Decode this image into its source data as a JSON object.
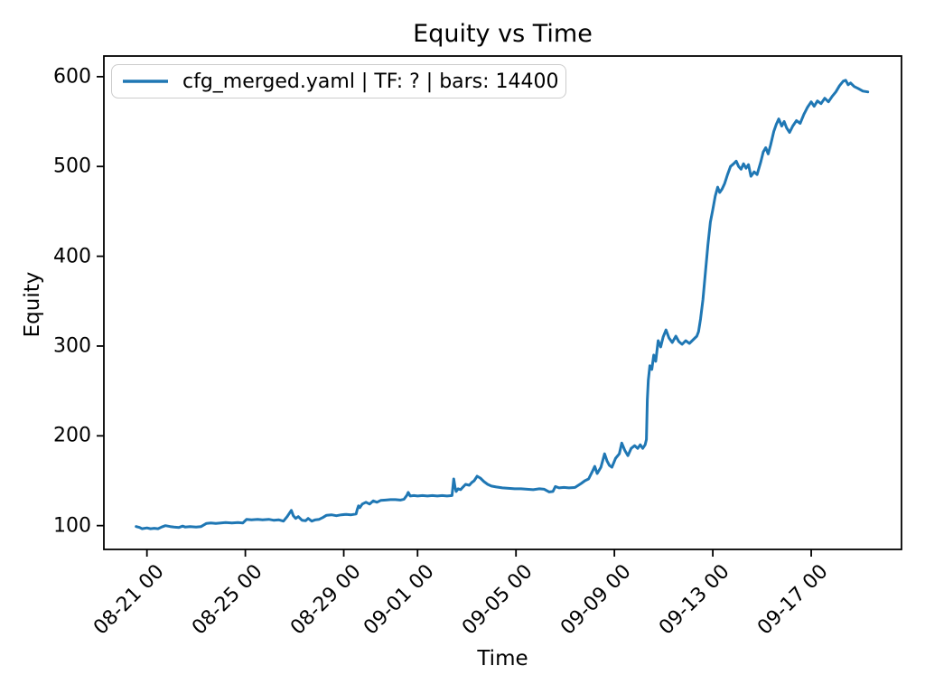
{
  "chart_data": {
    "type": "line",
    "title": "Equity vs Time",
    "xlabel": "Time",
    "ylabel": "Equity",
    "grid": false,
    "background": "#ffffff",
    "spine_color": "#000000",
    "legend": {
      "position": "upper left",
      "entries": [
        {
          "label": "cfg_merged.yaml | TF: ? | bars: 14400",
          "color": "#1f77b4"
        }
      ]
    },
    "x_unit": "days since 08-20 00:00",
    "xlim": [
      -0.75,
      31.67
    ],
    "ylim": [
      73.5,
      623
    ],
    "y_ticks": [
      100,
      200,
      300,
      400,
      500,
      600
    ],
    "x_ticks": [
      {
        "day": 1,
        "label": "08-21 00"
      },
      {
        "day": 5,
        "label": "08-25 00"
      },
      {
        "day": 9,
        "label": "08-29 00"
      },
      {
        "day": 12,
        "label": "09-01 00"
      },
      {
        "day": 16,
        "label": "09-05 00"
      },
      {
        "day": 20,
        "label": "09-09 00"
      },
      {
        "day": 24,
        "label": "09-13 00"
      },
      {
        "day": 28,
        "label": "09-17 00"
      }
    ],
    "series": [
      {
        "name": "cfg_merged.yaml | TF: ? | bars: 14400",
        "color": "#1f77b4",
        "linewidth": 3,
        "points": [
          [
            0.56,
            99
          ],
          [
            0.7,
            98
          ],
          [
            0.8,
            96.5
          ],
          [
            1.0,
            97.5
          ],
          [
            1.15,
            96.5
          ],
          [
            1.3,
            97
          ],
          [
            1.45,
            96.5
          ],
          [
            1.6,
            98.5
          ],
          [
            1.75,
            100
          ],
          [
            1.95,
            99
          ],
          [
            2.1,
            98.5
          ],
          [
            2.3,
            98
          ],
          [
            2.45,
            99.5
          ],
          [
            2.55,
            98.5
          ],
          [
            2.75,
            99
          ],
          [
            3.0,
            98.5
          ],
          [
            3.2,
            99
          ],
          [
            3.42,
            102.5
          ],
          [
            3.6,
            103
          ],
          [
            3.8,
            102.5
          ],
          [
            4.0,
            103
          ],
          [
            4.2,
            103.5
          ],
          [
            4.45,
            103
          ],
          [
            4.7,
            103.5
          ],
          [
            4.9,
            103
          ],
          [
            5.05,
            107
          ],
          [
            5.25,
            106.5
          ],
          [
            5.5,
            107
          ],
          [
            5.7,
            106.5
          ],
          [
            5.95,
            107
          ],
          [
            6.15,
            106
          ],
          [
            6.35,
            106.5
          ],
          [
            6.55,
            105
          ],
          [
            6.7,
            110
          ],
          [
            6.87,
            117
          ],
          [
            6.95,
            111
          ],
          [
            7.05,
            108
          ],
          [
            7.15,
            110
          ],
          [
            7.3,
            106
          ],
          [
            7.45,
            105.5
          ],
          [
            7.55,
            108
          ],
          [
            7.7,
            105
          ],
          [
            7.85,
            106.5
          ],
          [
            8.0,
            107
          ],
          [
            8.15,
            109
          ],
          [
            8.3,
            111.5
          ],
          [
            8.5,
            112
          ],
          [
            8.7,
            111
          ],
          [
            8.9,
            112
          ],
          [
            9.1,
            112.5
          ],
          [
            9.3,
            112
          ],
          [
            9.5,
            113
          ],
          [
            9.55,
            118
          ],
          [
            9.6,
            122
          ],
          [
            9.65,
            120
          ],
          [
            9.75,
            124
          ],
          [
            9.9,
            126
          ],
          [
            10.05,
            124
          ],
          [
            10.2,
            127.5
          ],
          [
            10.35,
            126
          ],
          [
            10.5,
            128
          ],
          [
            10.7,
            128.5
          ],
          [
            10.9,
            129
          ],
          [
            11.1,
            129
          ],
          [
            11.3,
            128.5
          ],
          [
            11.45,
            129.5
          ],
          [
            11.57,
            134
          ],
          [
            11.62,
            137
          ],
          [
            11.7,
            133
          ],
          [
            11.85,
            133.5
          ],
          [
            12.0,
            133
          ],
          [
            12.2,
            133.5
          ],
          [
            12.4,
            133
          ],
          [
            12.6,
            133.5
          ],
          [
            12.8,
            133
          ],
          [
            13.0,
            133.5
          ],
          [
            13.2,
            133
          ],
          [
            13.4,
            133.5
          ],
          [
            13.47,
            152
          ],
          [
            13.52,
            143
          ],
          [
            13.57,
            138
          ],
          [
            13.65,
            141
          ],
          [
            13.75,
            140
          ],
          [
            13.85,
            143
          ],
          [
            13.95,
            146
          ],
          [
            14.1,
            145
          ],
          [
            14.2,
            148
          ],
          [
            14.3,
            150
          ],
          [
            14.42,
            155
          ],
          [
            14.55,
            153
          ],
          [
            14.7,
            149
          ],
          [
            14.85,
            146
          ],
          [
            15.0,
            144
          ],
          [
            15.2,
            143
          ],
          [
            15.45,
            142
          ],
          [
            15.7,
            141.5
          ],
          [
            15.95,
            141
          ],
          [
            16.2,
            141
          ],
          [
            16.45,
            140.5
          ],
          [
            16.7,
            140
          ],
          [
            16.95,
            141
          ],
          [
            17.15,
            140.5
          ],
          [
            17.35,
            137.5
          ],
          [
            17.5,
            138
          ],
          [
            17.6,
            143.5
          ],
          [
            17.75,
            142
          ],
          [
            17.95,
            142.5
          ],
          [
            18.15,
            142
          ],
          [
            18.4,
            142.5
          ],
          [
            18.65,
            147
          ],
          [
            18.8,
            150
          ],
          [
            18.95,
            152
          ],
          [
            19.1,
            160
          ],
          [
            19.2,
            166
          ],
          [
            19.3,
            158
          ],
          [
            19.45,
            165
          ],
          [
            19.6,
            180
          ],
          [
            19.7,
            172
          ],
          [
            19.8,
            167
          ],
          [
            19.9,
            165
          ],
          [
            20.05,
            175
          ],
          [
            20.2,
            180
          ],
          [
            20.3,
            192
          ],
          [
            20.42,
            184
          ],
          [
            20.55,
            178
          ],
          [
            20.68,
            186
          ],
          [
            20.82,
            189
          ],
          [
            20.95,
            186
          ],
          [
            21.05,
            190
          ],
          [
            21.15,
            186
          ],
          [
            21.25,
            190
          ],
          [
            21.3,
            196
          ],
          [
            21.34,
            240
          ],
          [
            21.38,
            262
          ],
          [
            21.44,
            278
          ],
          [
            21.52,
            274
          ],
          [
            21.6,
            290
          ],
          [
            21.68,
            283
          ],
          [
            21.78,
            306
          ],
          [
            21.88,
            299
          ],
          [
            21.98,
            310
          ],
          [
            22.1,
            318
          ],
          [
            22.22,
            309
          ],
          [
            22.35,
            304
          ],
          [
            22.5,
            311
          ],
          [
            22.62,
            305
          ],
          [
            22.75,
            302
          ],
          [
            22.9,
            306
          ],
          [
            23.05,
            303
          ],
          [
            23.2,
            307
          ],
          [
            23.35,
            311
          ],
          [
            23.42,
            316
          ],
          [
            23.5,
            330
          ],
          [
            23.6,
            352
          ],
          [
            23.7,
            382
          ],
          [
            23.8,
            413
          ],
          [
            23.9,
            438
          ],
          [
            24.0,
            452
          ],
          [
            24.1,
            467
          ],
          [
            24.2,
            477
          ],
          [
            24.28,
            471
          ],
          [
            24.38,
            475
          ],
          [
            24.48,
            481
          ],
          [
            24.6,
            491
          ],
          [
            24.72,
            500
          ],
          [
            24.85,
            503
          ],
          [
            24.95,
            506
          ],
          [
            25.05,
            500
          ],
          [
            25.15,
            497
          ],
          [
            25.25,
            503
          ],
          [
            25.35,
            498
          ],
          [
            25.45,
            502
          ],
          [
            25.55,
            489
          ],
          [
            25.68,
            494
          ],
          [
            25.8,
            491
          ],
          [
            25.95,
            505
          ],
          [
            26.05,
            516
          ],
          [
            26.15,
            521
          ],
          [
            26.25,
            514
          ],
          [
            26.35,
            524
          ],
          [
            26.48,
            539
          ],
          [
            26.58,
            547
          ],
          [
            26.68,
            553
          ],
          [
            26.8,
            545
          ],
          [
            26.9,
            550
          ],
          [
            27.0,
            543
          ],
          [
            27.12,
            538
          ],
          [
            27.25,
            545
          ],
          [
            27.4,
            551
          ],
          [
            27.55,
            548
          ],
          [
            27.7,
            558
          ],
          [
            27.85,
            566
          ],
          [
            28.0,
            572
          ],
          [
            28.12,
            567
          ],
          [
            28.25,
            573
          ],
          [
            28.4,
            570
          ],
          [
            28.55,
            576
          ],
          [
            28.7,
            572
          ],
          [
            28.85,
            578
          ],
          [
            29.0,
            583
          ],
          [
            29.15,
            590
          ],
          [
            29.3,
            595
          ],
          [
            29.4,
            596
          ],
          [
            29.5,
            591
          ],
          [
            29.6,
            593
          ],
          [
            29.75,
            589
          ],
          [
            29.9,
            587
          ],
          [
            30.1,
            584
          ],
          [
            30.3,
            583
          ]
        ]
      }
    ]
  }
}
